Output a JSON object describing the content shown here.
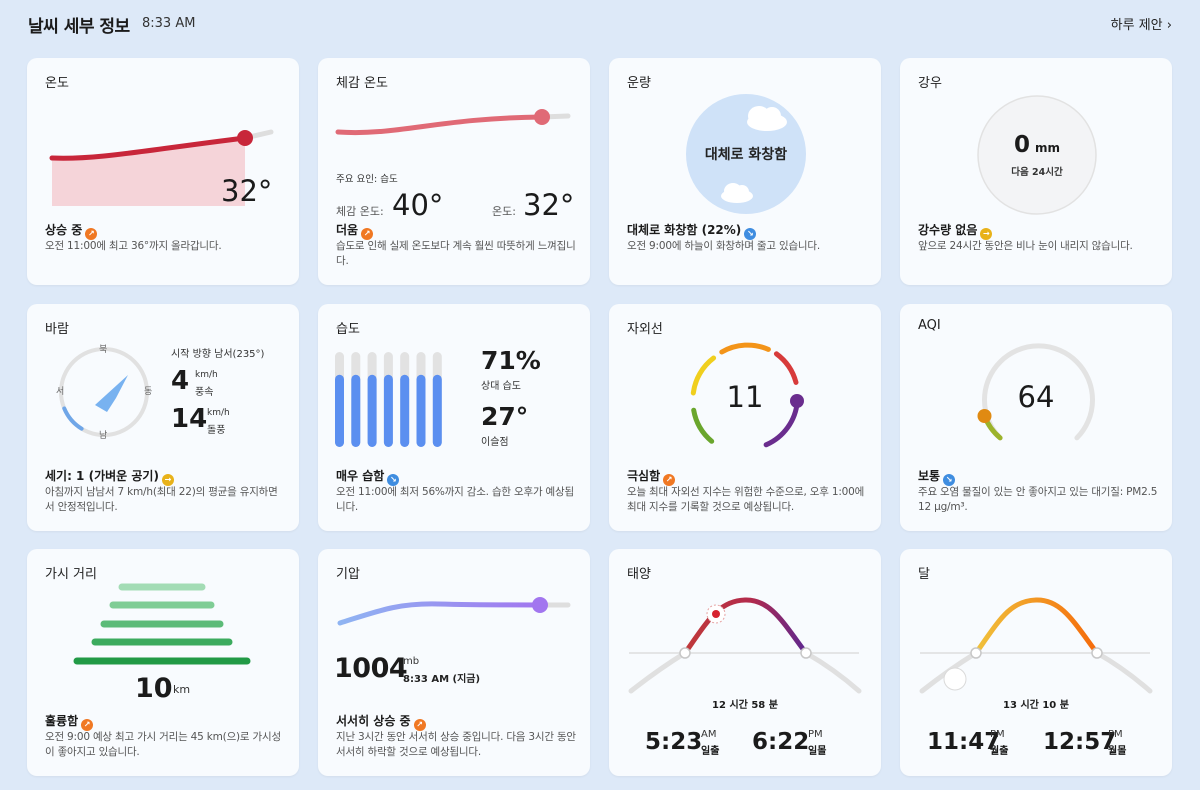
{
  "header": {
    "title": "날씨 세부 정보",
    "time": "8:33 AM",
    "link": "하루 제안"
  },
  "temperature": {
    "title": "온도",
    "value": "32°",
    "summary": "상승 중",
    "desc": "오전 11:00에 최고 36°까지 올라갑니다.",
    "colors": {
      "line": "#c8263a",
      "fill": "#f4cdd3"
    }
  },
  "feels_like": {
    "title": "체감 온도",
    "factor": "주요 요인: 습도",
    "feels_label": "체감 온도:",
    "feels_value": "40°",
    "temp_label": "온도:",
    "temp_value": "32°",
    "summary": "더움",
    "desc": "습도로 인해 실제 온도보다 계속 훨씬 따뜻하게 느껴집니다."
  },
  "cloud": {
    "title": "운량",
    "center": "대체로 화창함",
    "summary": "대체로 화창함 (22%)",
    "desc": "오전 9:00에 하늘이 화창하며 줄고 있습니다."
  },
  "rain": {
    "title": "강우",
    "value": "0",
    "unit": "mm",
    "period": "다음 24시간",
    "summary": "강수량 없음",
    "desc": "앞으로 24시간 동안은 비나 눈이 내리지 않습니다."
  },
  "wind": {
    "title": "바람",
    "dir_label": "시작 방향 남서(235°)",
    "speed": "4",
    "speed_unit": "km/h",
    "speed_label": "풍속",
    "gust": "14",
    "gust_unit": "km/h",
    "gust_label": "돌풍",
    "compass": {
      "n": "북",
      "e": "동",
      "s": "남",
      "w": "서"
    },
    "direction_deg": 235,
    "summary": "세기: 1 (가벼운 공기)",
    "desc": "아침까지 남남서 7 km/h(최대 22)의 평균을 유지하면서 안정적입니다."
  },
  "humidity": {
    "title": "습도",
    "value": "71%",
    "value_label": "상대 습도",
    "dew": "27°",
    "dew_label": "이슬점",
    "bars": [
      0.76,
      0.76,
      0.76,
      0.76,
      0.76,
      0.76,
      0.76
    ],
    "summary": "매우 습함",
    "desc": "오전 11:00에 최저 56%까지 감소. 습한 오후가 예상됩니다."
  },
  "uv": {
    "title": "자외선",
    "value": "11",
    "summary": "극심함",
    "desc": "오늘 최대 자외선 지수는 위험한 수준으로, 오후 1:00에 최대 지수를 기록할 것으로 예상됩니다."
  },
  "aqi": {
    "title": "AQI",
    "value": "64",
    "summary": "보통",
    "desc": "주요 오염 물질이 있는 안 좋아지고 있는 대기질: PM2.5 12 μg/m³."
  },
  "visibility": {
    "title": "가시 거리",
    "value": "10",
    "unit": "km",
    "summary": "훌륭함",
    "desc": "오전 9:00 예상 최고 가시 거리는 45 km(으)로 가시성이 좋아지고 있습니다."
  },
  "pressure": {
    "title": "기압",
    "value": "1004",
    "unit": "mb",
    "time": "8:33 AM (지금)",
    "summary": "서서히 상승 중",
    "desc": "지난 3시간 동안 서서히 상승 중입니다. 다음 3시간 동안 서서히 하락할 것으로 예상됩니다."
  },
  "sun": {
    "title": "태양",
    "duration": "12 시간 58 분",
    "rise": "5:23",
    "rise_ampm": "AM",
    "rise_label": "일출",
    "set": "6:22",
    "set_ampm": "PM",
    "set_label": "일몰"
  },
  "moon": {
    "title": "달",
    "duration": "13 시간 10 분",
    "rise": "11:47",
    "rise_ampm": "PM",
    "rise_label": "월출",
    "set": "12:57",
    "set_ampm": "PM",
    "set_label": "월몰"
  }
}
